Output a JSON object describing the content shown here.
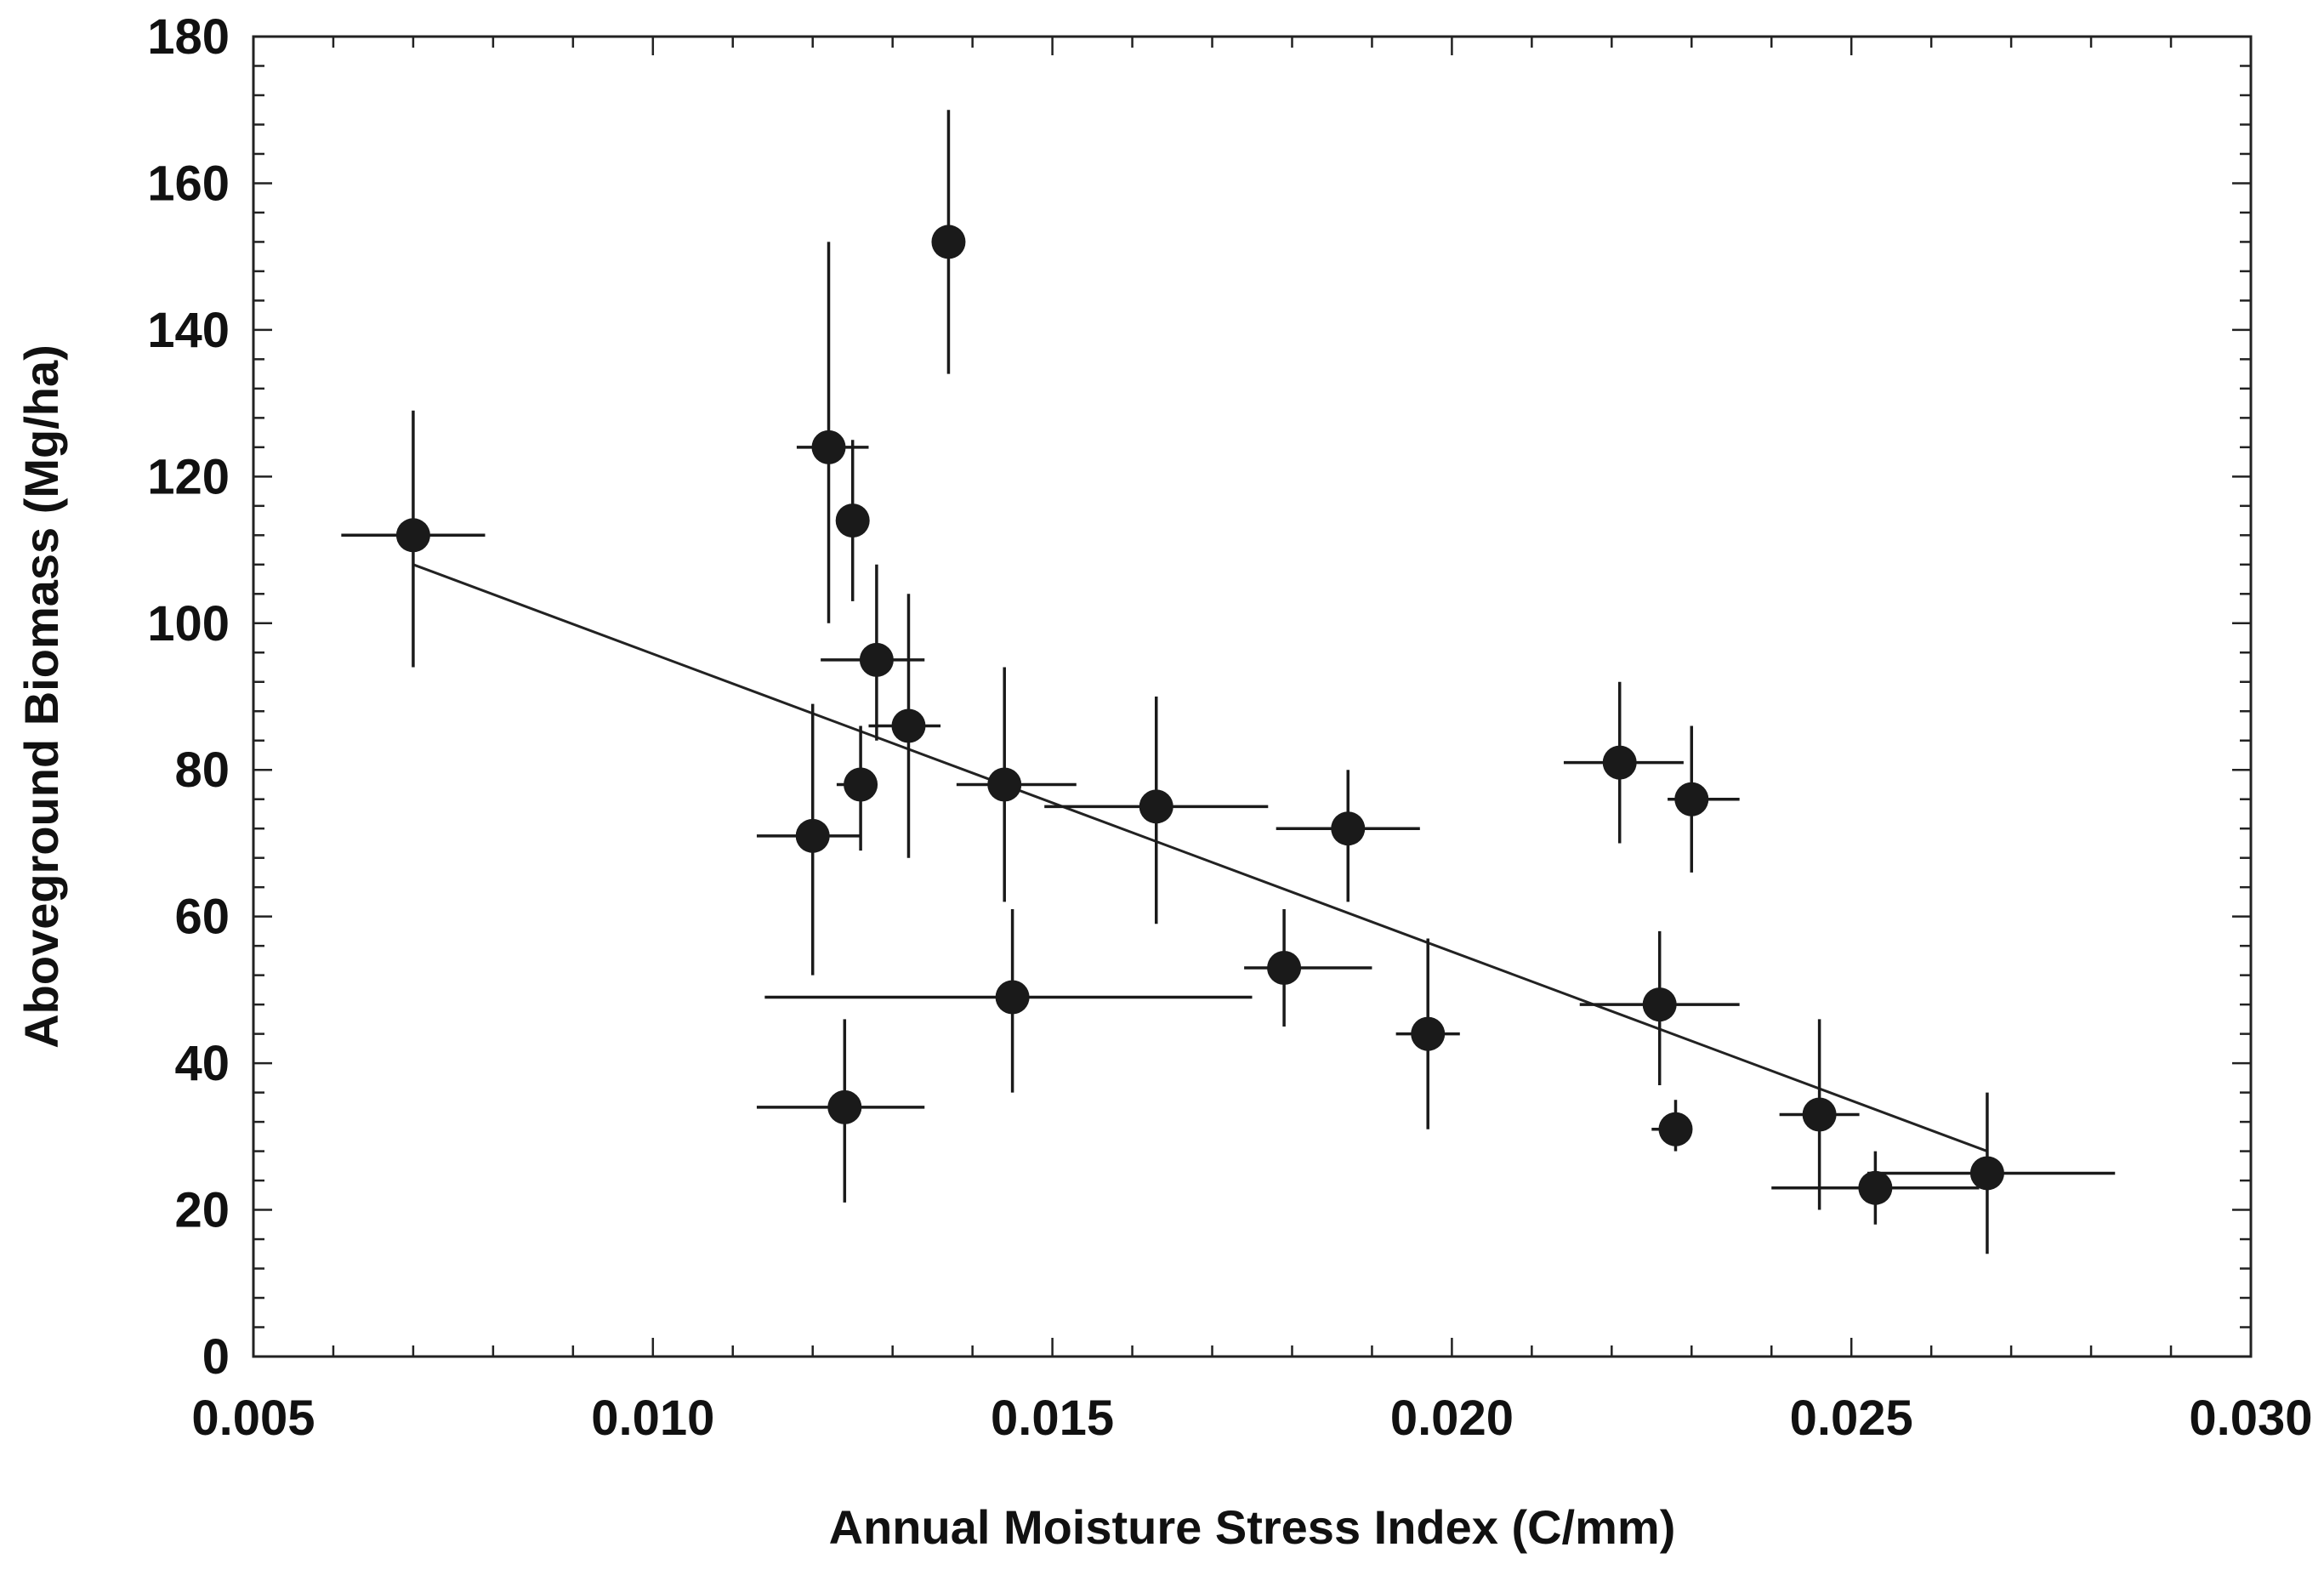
{
  "chart_data": {
    "type": "scatter",
    "title": "",
    "xlabel": "Annual Moisture Stress Index (C/mm)",
    "ylabel": "Aboveground Biomass (Mg/ha)",
    "xlim": [
      0.005,
      0.03
    ],
    "ylim": [
      0,
      180
    ],
    "x_ticks": [
      0.005,
      0.01,
      0.015,
      0.02,
      0.025,
      0.03
    ],
    "x_tick_labels": [
      "0.005",
      "0.010",
      "0.015",
      "0.020",
      "0.025",
      "0.030"
    ],
    "y_ticks": [
      0,
      20,
      40,
      60,
      80,
      100,
      120,
      140,
      160,
      180
    ],
    "y_tick_labels": [
      "0",
      "20",
      "40",
      "60",
      "80",
      "100",
      "120",
      "140",
      "160",
      "180"
    ],
    "x_minor_step": 0.001,
    "y_minor_step": 4,
    "grid": false,
    "legend": null,
    "points": [
      {
        "x": 0.007,
        "y": 112,
        "xerr": [
          0.0061,
          0.0079
        ],
        "yerr": [
          94,
          129
        ]
      },
      {
        "x": 0.012,
        "y": 71,
        "xerr": [
          0.0113,
          0.0126
        ],
        "yerr": [
          52,
          89
        ]
      },
      {
        "x": 0.0122,
        "y": 124,
        "xerr": [
          0.0118,
          0.0127
        ],
        "yerr": [
          100,
          152
        ]
      },
      {
        "x": 0.0124,
        "y": 34,
        "xerr": [
          0.0113,
          0.0134
        ],
        "yerr": [
          21,
          46
        ]
      },
      {
        "x": 0.0125,
        "y": 114,
        "xerr": [
          0.0124,
          0.0126
        ],
        "yerr": [
          103,
          125
        ]
      },
      {
        "x": 0.0126,
        "y": 78,
        "xerr": [
          0.0123,
          0.0128
        ],
        "yerr": [
          69,
          86
        ]
      },
      {
        "x": 0.0128,
        "y": 95,
        "xerr": [
          0.0121,
          0.0134
        ],
        "yerr": [
          84,
          108
        ]
      },
      {
        "x": 0.0132,
        "y": 86,
        "xerr": [
          0.0127,
          0.0136
        ],
        "yerr": [
          68,
          104
        ]
      },
      {
        "x": 0.0137,
        "y": 152,
        "xerr": [
          0.0135,
          0.0139
        ],
        "yerr": [
          134,
          170
        ]
      },
      {
        "x": 0.0144,
        "y": 78,
        "xerr": [
          0.0138,
          0.0153
        ],
        "yerr": [
          62,
          94
        ]
      },
      {
        "x": 0.0145,
        "y": 49,
        "xerr": [
          0.0114,
          0.0175
        ],
        "yerr": [
          36,
          61
        ]
      },
      {
        "x": 0.0163,
        "y": 75,
        "xerr": [
          0.0149,
          0.0177
        ],
        "yerr": [
          59,
          90
        ]
      },
      {
        "x": 0.0179,
        "y": 53,
        "xerr": [
          0.0174,
          0.019
        ],
        "yerr": [
          45,
          61
        ]
      },
      {
        "x": 0.0187,
        "y": 72,
        "xerr": [
          0.0178,
          0.0196
        ],
        "yerr": [
          62,
          80
        ]
      },
      {
        "x": 0.0197,
        "y": 44,
        "xerr": [
          0.0193,
          0.0201
        ],
        "yerr": [
          31,
          57
        ]
      },
      {
        "x": 0.0221,
        "y": 81,
        "xerr": [
          0.0214,
          0.0229
        ],
        "yerr": [
          70,
          92
        ]
      },
      {
        "x": 0.0226,
        "y": 48,
        "xerr": [
          0.0216,
          0.0236
        ],
        "yerr": [
          37,
          58
        ]
      },
      {
        "x": 0.0228,
        "y": 31,
        "xerr": [
          0.0225,
          0.023
        ],
        "yerr": [
          28,
          35
        ]
      },
      {
        "x": 0.023,
        "y": 76,
        "xerr": [
          0.0227,
          0.0236
        ],
        "yerr": [
          66,
          86
        ]
      },
      {
        "x": 0.0246,
        "y": 33,
        "xerr": [
          0.0241,
          0.0251
        ],
        "yerr": [
          20,
          46
        ]
      },
      {
        "x": 0.0253,
        "y": 23,
        "xerr": [
          0.024,
          0.0266
        ],
        "yerr": [
          18,
          28
        ]
      },
      {
        "x": 0.0267,
        "y": 25,
        "xerr": [
          0.0252,
          0.0283
        ],
        "yerr": [
          14,
          36
        ]
      }
    ],
    "trendline": {
      "type": "line",
      "x": [
        0.007,
        0.0267
      ],
      "y": [
        108,
        28
      ]
    },
    "colors": {
      "marker": "#1a1a1a",
      "errorbar": "#1a1a1a",
      "trendline": "#222222",
      "axis": "#222222",
      "text": "#111111",
      "background": "#ffffff"
    }
  }
}
